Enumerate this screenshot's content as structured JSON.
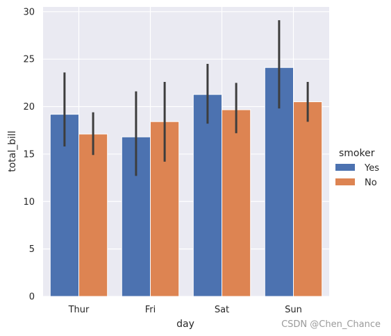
{
  "chart_data": {
    "type": "bar",
    "categories": [
      "Thur",
      "Fri",
      "Sat",
      "Sun"
    ],
    "xlabel": "day",
    "ylabel": "total_bill",
    "ylim": [
      0,
      30.5
    ],
    "yticks": [
      0,
      5,
      10,
      15,
      20,
      25,
      30
    ],
    "grid": true,
    "legend": {
      "title": "smoker",
      "placement": "right"
    },
    "series": [
      {
        "name": "Yes",
        "color": "#4c72b0",
        "values": [
          19.19,
          16.81,
          21.28,
          24.12
        ],
        "ci_low": [
          15.8,
          12.7,
          18.2,
          19.8
        ],
        "ci_high": [
          23.6,
          21.6,
          24.5,
          29.1
        ]
      },
      {
        "name": "No",
        "color": "#dd8452",
        "values": [
          17.11,
          18.42,
          19.67,
          20.51
        ],
        "ci_low": [
          14.9,
          14.2,
          17.2,
          18.4
        ],
        "ci_high": [
          19.4,
          22.6,
          22.5,
          22.6
        ]
      }
    ]
  },
  "watermark": "CSDN @Chen_Chance"
}
